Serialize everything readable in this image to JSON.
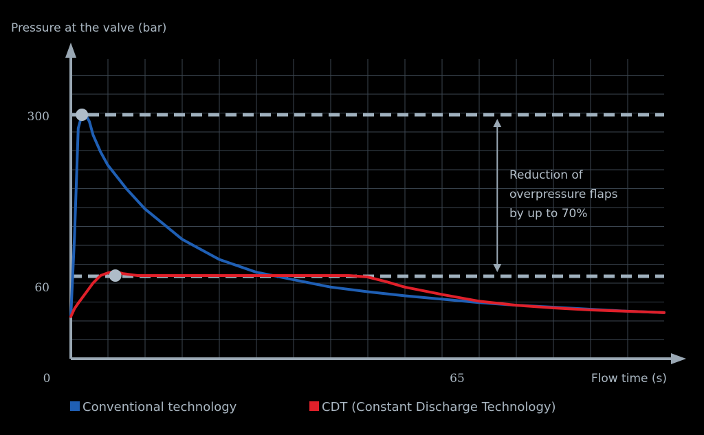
{
  "chart_data": {
    "type": "line",
    "title": "",
    "ylabel": "Pressure at the valve (bar)",
    "xlabel": "Flow time (s)",
    "x_ticks": [
      0,
      65
    ],
    "y_ticks": [
      60,
      300
    ],
    "xlim": [
      0,
      160
    ],
    "ylim": [
      0,
      390
    ],
    "grid": true,
    "legend": "bottom",
    "series": [
      {
        "name": "Conventional technology",
        "color": "#1f5fb4",
        "points": [
          [
            0,
            0
          ],
          [
            1,
            120
          ],
          [
            2,
            280
          ],
          [
            3,
            300
          ],
          [
            4,
            300
          ],
          [
            5,
            290
          ],
          [
            6,
            270
          ],
          [
            8,
            245
          ],
          [
            10,
            225
          ],
          [
            15,
            190
          ],
          [
            20,
            160
          ],
          [
            30,
            115
          ],
          [
            40,
            85
          ],
          [
            50,
            66
          ],
          [
            60,
            55
          ],
          [
            70,
            44
          ],
          [
            80,
            37
          ],
          [
            90,
            31
          ],
          [
            100,
            26
          ],
          [
            110,
            21
          ],
          [
            120,
            17
          ],
          [
            130,
            14
          ],
          [
            140,
            11
          ],
          [
            150,
            8
          ],
          [
            160,
            6
          ]
        ]
      },
      {
        "name": "CDT (Constant Discharge Technology)",
        "color": "#e0202a",
        "points": [
          [
            0,
            0
          ],
          [
            1,
            12
          ],
          [
            2,
            20
          ],
          [
            4,
            35
          ],
          [
            6,
            50
          ],
          [
            8,
            61
          ],
          [
            10,
            65
          ],
          [
            12,
            67
          ],
          [
            14,
            64
          ],
          [
            18,
            61
          ],
          [
            30,
            61
          ],
          [
            50,
            61
          ],
          [
            60,
            61
          ],
          [
            75,
            61
          ],
          [
            80,
            59
          ],
          [
            85,
            52
          ],
          [
            90,
            44
          ],
          [
            100,
            33
          ],
          [
            110,
            23
          ],
          [
            120,
            17
          ],
          [
            130,
            13
          ],
          [
            140,
            10
          ],
          [
            150,
            8
          ],
          [
            160,
            6
          ]
        ]
      }
    ],
    "reference_lines": [
      {
        "y": 300,
        "color": "#9fb0bd"
      },
      {
        "y": 60,
        "color": "#9fb0bd"
      }
    ],
    "markers": [
      {
        "x": 3,
        "y": 300
      },
      {
        "x": 12,
        "y": 61
      }
    ],
    "annotation": {
      "lines": [
        "Reduction of",
        "overpressure flaps",
        "by up to 70%"
      ],
      "arrow_x": 115,
      "from_y": 300,
      "to_y": 60
    }
  }
}
